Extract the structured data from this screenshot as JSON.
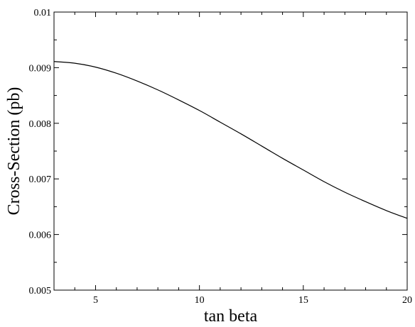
{
  "chart_data": {
    "type": "line",
    "title": "",
    "xlabel": "tan beta",
    "ylabel": "Cross-Section (pb)",
    "xlim": [
      3,
      20
    ],
    "ylim": [
      0.005,
      0.01
    ],
    "xticks": [
      5,
      10,
      15,
      20
    ],
    "xtick_labels": [
      "5",
      "10",
      "15",
      "20"
    ],
    "yticks": [
      0.005,
      0.006,
      0.007,
      0.008,
      0.009,
      0.01
    ],
    "ytick_labels": [
      "0.005",
      "0.006",
      "0.007",
      "0.008",
      "0.009",
      "0.01"
    ],
    "grid": false,
    "series": [
      {
        "color": "#000000",
        "x": [
          3,
          4,
          5,
          6,
          7,
          8,
          9,
          10,
          11,
          12,
          13,
          14,
          15,
          16,
          17,
          18,
          19,
          20
        ],
        "y": [
          0.00911,
          0.00908,
          0.00901,
          0.0089,
          0.00876,
          0.0086,
          0.00842,
          0.00823,
          0.00802,
          0.00781,
          0.00759,
          0.00737,
          0.00716,
          0.00695,
          0.00676,
          0.00659,
          0.00643,
          0.00629
        ]
      }
    ]
  }
}
